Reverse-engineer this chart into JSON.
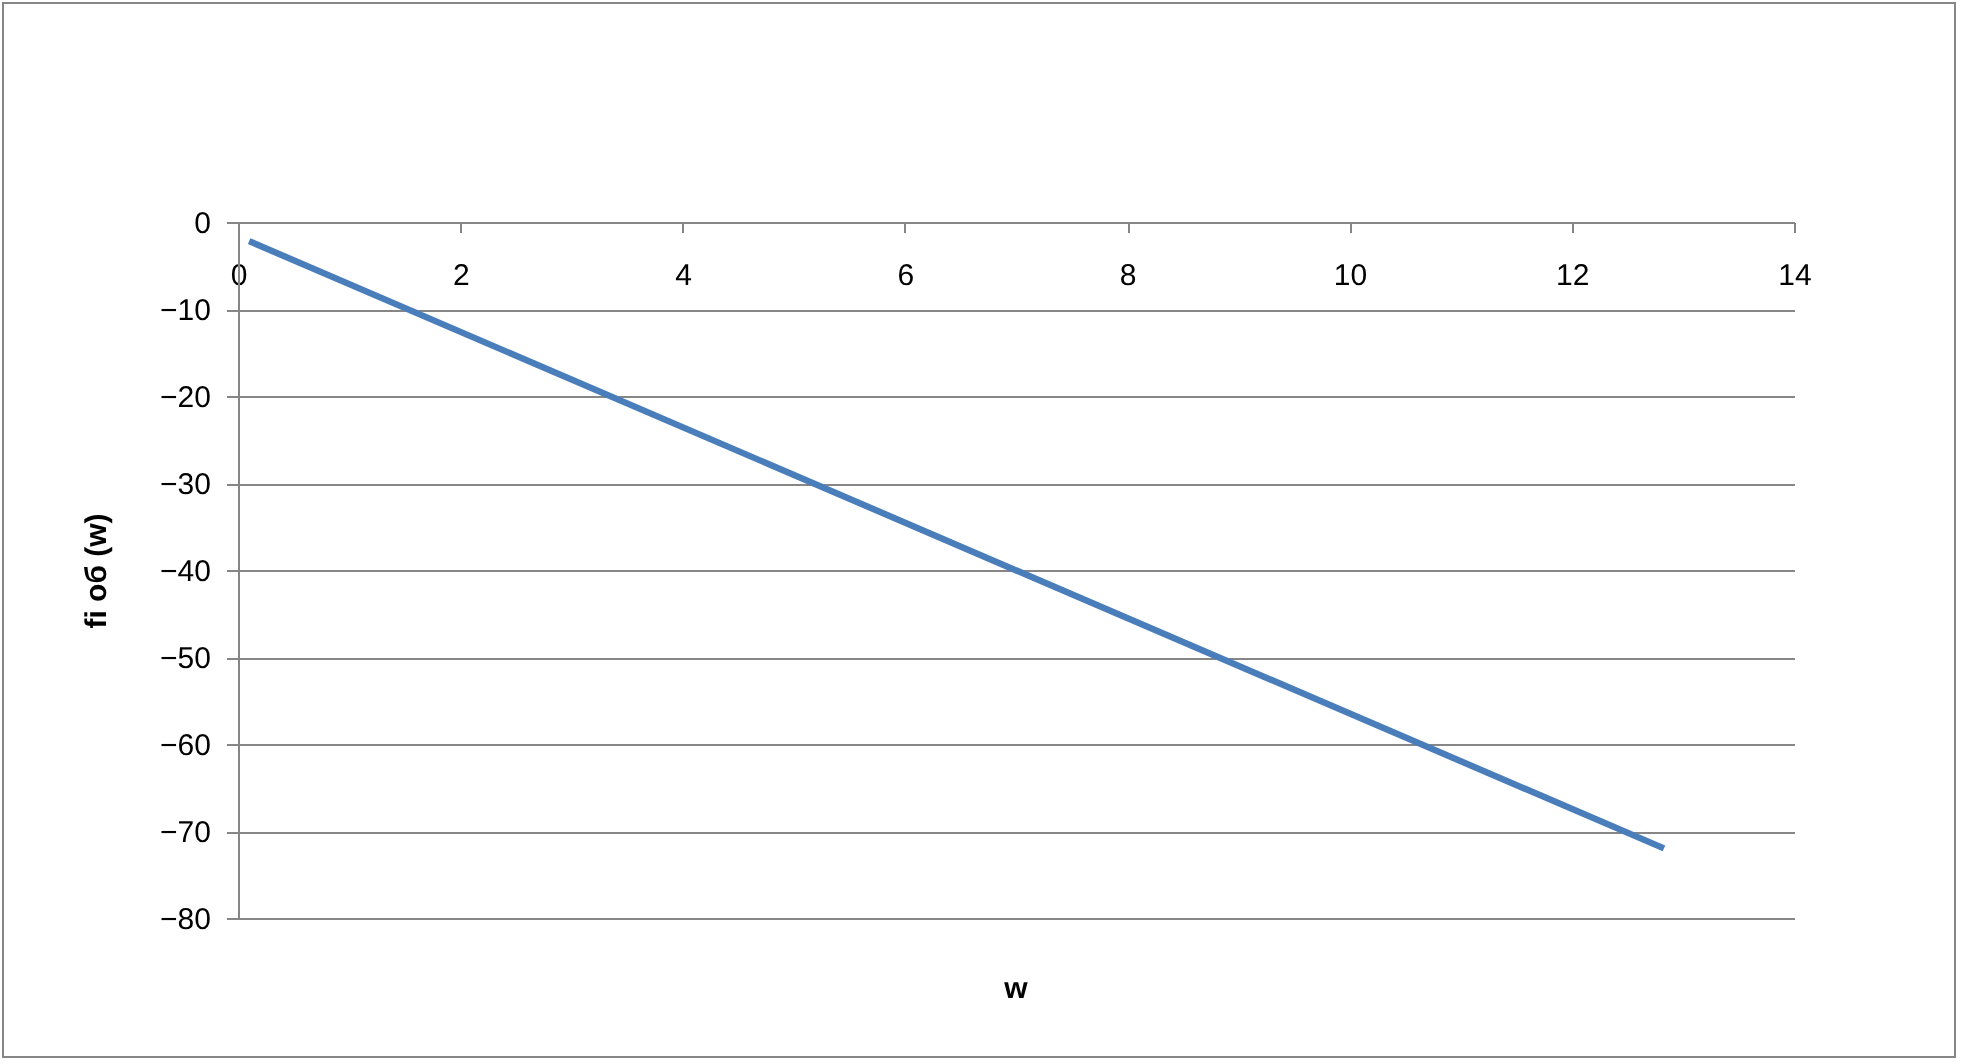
{
  "chart_data": {
    "type": "line",
    "xlabel": "w",
    "ylabel": "fi об (w)",
    "x": [
      0.1,
      12.83
    ],
    "series": [
      {
        "color": "#4a7ebb",
        "values": [
          -2.2,
          -72
        ]
      }
    ],
    "xlim": [
      0,
      14
    ],
    "xticks": [
      0,
      2,
      4,
      6,
      8,
      10,
      12,
      14
    ],
    "ylim": [
      -80,
      0
    ],
    "yticks": [
      -80,
      -70,
      -60,
      -50,
      -40,
      -30,
      -20,
      -10,
      0
    ],
    "grid": "y",
    "marker": "none",
    "line_style": "solid"
  }
}
